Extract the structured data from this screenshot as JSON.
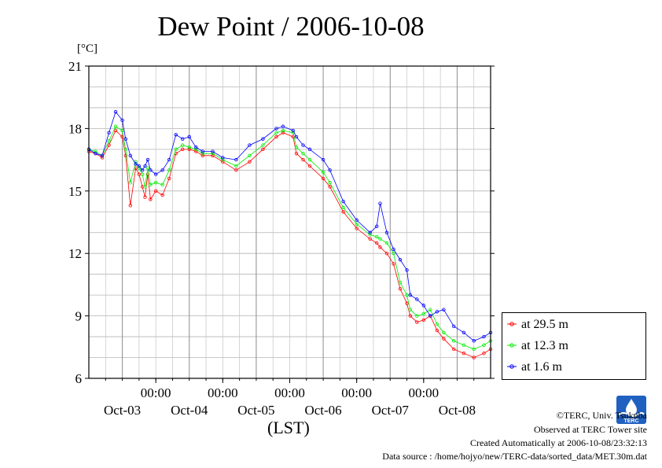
{
  "title": "Dew Point / 2006-10-08",
  "y_unit": "[°C]",
  "x_axis_label": "(LST)",
  "credits": {
    "copyright": "©TERC, Univ. Tsukuba",
    "site": "Observed at TERC Tower site",
    "created": "Created Automatically at 2006-10-08/23:32:13",
    "source": "Data source : /home/hojyo/new/TERC-data/sorted_data/MET.30m.dat"
  },
  "logo_text": "TERC",
  "chart_data": {
    "type": "line",
    "title": "Dew Point / 2006-10-08",
    "ylabel": "[°C]",
    "xlabel": "(LST)",
    "ylim": [
      6,
      21
    ],
    "yticks": [
      6,
      9,
      12,
      15,
      18,
      21
    ],
    "xlim_days": [
      0,
      6
    ],
    "x_time_ticks": [
      "00:00",
      "00:00",
      "00:00",
      "00:00",
      "00:00"
    ],
    "x_date_labels": [
      "Oct-03",
      "Oct-04",
      "Oct-05",
      "Oct-06",
      "Oct-07",
      "Oct-08"
    ],
    "grid": true,
    "legend_position": "right",
    "x_unit": "days from Oct-02 12:00 LST",
    "series": [
      {
        "name": "at 29.5 m",
        "color": "#ff0000",
        "x": [
          0,
          0.1,
          0.2,
          0.3,
          0.4,
          0.5,
          0.55,
          0.62,
          0.7,
          0.75,
          0.8,
          0.84,
          0.88,
          0.92,
          1.0,
          1.1,
          1.2,
          1.3,
          1.4,
          1.5,
          1.6,
          1.7,
          1.85,
          2.0,
          2.2,
          2.4,
          2.6,
          2.8,
          2.9,
          3.05,
          3.1,
          3.2,
          3.3,
          3.5,
          3.6,
          3.8,
          4.0,
          4.2,
          4.3,
          4.35,
          4.45,
          4.55,
          4.65,
          4.75,
          4.8,
          4.9,
          5.0,
          5.1,
          5.2,
          5.3,
          5.45,
          5.6,
          5.75,
          5.9,
          6.0
        ],
        "y": [
          16.9,
          16.8,
          16.6,
          17.2,
          17.9,
          17.6,
          16.7,
          14.3,
          16.1,
          15.8,
          15.2,
          14.7,
          15.8,
          14.6,
          15.0,
          14.8,
          15.6,
          16.8,
          17.0,
          17.0,
          16.9,
          16.7,
          16.7,
          16.4,
          16.0,
          16.4,
          17.0,
          17.6,
          17.8,
          17.6,
          16.8,
          16.5,
          16.2,
          15.6,
          15.2,
          14.0,
          13.2,
          12.7,
          12.5,
          12.3,
          12.0,
          11.5,
          10.3,
          9.6,
          9.0,
          8.7,
          8.8,
          9.0,
          8.3,
          7.9,
          7.4,
          7.2,
          7.0,
          7.2,
          7.4
        ]
      },
      {
        "name": "at 12.3 m",
        "color": "#00ee00",
        "x": [
          0,
          0.1,
          0.2,
          0.3,
          0.4,
          0.5,
          0.55,
          0.62,
          0.7,
          0.75,
          0.8,
          0.84,
          0.88,
          0.92,
          1.0,
          1.1,
          1.2,
          1.3,
          1.4,
          1.5,
          1.6,
          1.7,
          1.85,
          2.0,
          2.2,
          2.4,
          2.6,
          2.8,
          2.9,
          3.05,
          3.1,
          3.2,
          3.3,
          3.5,
          3.6,
          3.8,
          4.0,
          4.2,
          4.3,
          4.35,
          4.45,
          4.55,
          4.65,
          4.75,
          4.8,
          4.9,
          5.0,
          5.1,
          5.2,
          5.3,
          5.45,
          5.6,
          5.75,
          5.9,
          6.0
        ],
        "y": [
          17.0,
          16.9,
          16.7,
          17.4,
          18.1,
          17.9,
          17.0,
          15.4,
          16.4,
          16.1,
          15.8,
          15.2,
          16.1,
          15.3,
          15.4,
          15.3,
          16.0,
          17.0,
          17.2,
          17.1,
          17.0,
          16.8,
          16.8,
          16.5,
          16.2,
          16.7,
          17.2,
          17.8,
          17.9,
          17.8,
          17.1,
          16.8,
          16.5,
          15.9,
          15.4,
          14.2,
          13.4,
          12.9,
          12.8,
          12.7,
          12.5,
          12.0,
          10.6,
          10.0,
          9.3,
          9.0,
          9.1,
          9.3,
          8.6,
          8.2,
          7.8,
          7.6,
          7.4,
          7.6,
          7.8
        ]
      },
      {
        "name": "at 1.6 m",
        "color": "#0000ff",
        "x": [
          0,
          0.1,
          0.2,
          0.3,
          0.4,
          0.5,
          0.55,
          0.62,
          0.7,
          0.75,
          0.8,
          0.84,
          0.88,
          0.92,
          1.0,
          1.1,
          1.2,
          1.3,
          1.4,
          1.5,
          1.6,
          1.7,
          1.85,
          2.0,
          2.2,
          2.4,
          2.6,
          2.8,
          2.9,
          3.05,
          3.1,
          3.2,
          3.3,
          3.5,
          3.6,
          3.8,
          4.0,
          4.2,
          4.3,
          4.35,
          4.45,
          4.55,
          4.65,
          4.75,
          4.8,
          4.9,
          5.0,
          5.1,
          5.2,
          5.3,
          5.45,
          5.6,
          5.75,
          5.9,
          6.0
        ],
        "y": [
          17.0,
          16.8,
          16.7,
          17.8,
          18.8,
          18.4,
          17.5,
          16.7,
          16.3,
          16.2,
          16.0,
          16.2,
          16.5,
          16.0,
          15.8,
          16.0,
          16.5,
          17.7,
          17.5,
          17.6,
          17.1,
          16.9,
          16.9,
          16.6,
          16.5,
          17.2,
          17.5,
          18.0,
          18.1,
          17.9,
          17.6,
          17.2,
          17.0,
          16.5,
          16.0,
          14.5,
          13.6,
          13.0,
          13.3,
          14.4,
          13.0,
          12.2,
          11.7,
          11.2,
          10.0,
          9.8,
          9.5,
          9.0,
          9.2,
          9.3,
          8.5,
          8.2,
          7.8,
          8.0,
          8.2
        ]
      }
    ]
  }
}
